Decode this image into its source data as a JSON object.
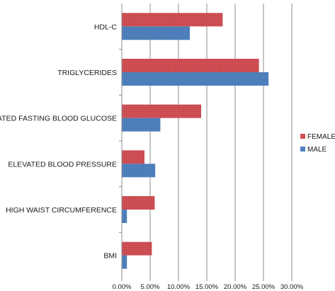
{
  "chart_data": {
    "type": "bar",
    "orientation": "horizontal",
    "categories": [
      "HDL-C",
      "TRIGLYCERIDES",
      "ELAVATED FASTING BLOOD GLUCOSE",
      "ELEVATED BLOOD PRESSURE",
      "HIGH WAIST CIRCUMFERENCE",
      "BMI"
    ],
    "series": [
      {
        "name": "FEMALE",
        "values": [
          17.8,
          24.2,
          14.0,
          4.0,
          5.8,
          5.3
        ]
      },
      {
        "name": "MALE",
        "values": [
          12.0,
          25.9,
          6.8,
          5.9,
          0.9,
          0.9
        ]
      }
    ],
    "xlim": [
      0,
      30
    ],
    "x_ticks": [
      "0.00%",
      "5.00%",
      "10.00%",
      "15.00%",
      "20.00%",
      "25.00%",
      "30.00%"
    ],
    "grid": "vertical",
    "legend_position": "right",
    "colors": {
      "FEMALE": "#d05055",
      "MALE": "#4f81bd"
    },
    "title": "",
    "xlabel": "",
    "ylabel": ""
  }
}
